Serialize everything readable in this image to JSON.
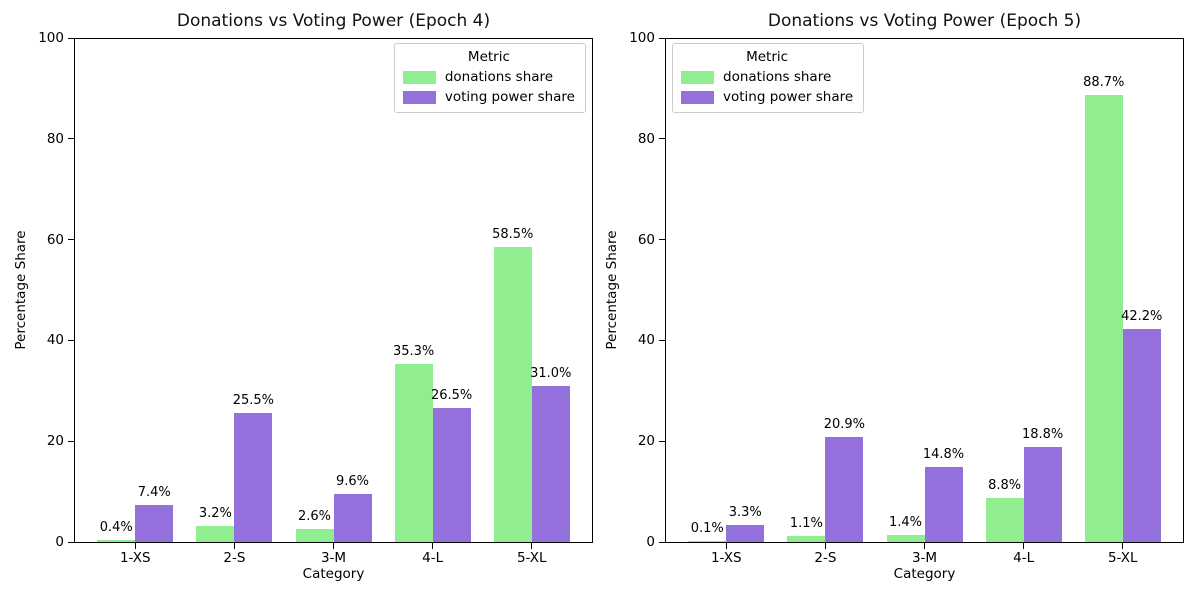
{
  "figure": {
    "background": "#ffffff",
    "spine_color": "#000000",
    "text_color": "#111111"
  },
  "chart_data": [
    {
      "type": "bar",
      "title": "Donations vs Voting Power (Epoch 4)",
      "xlabel": "Category",
      "ylabel": "Percentage Share",
      "categories": [
        "1-XS",
        "2-S",
        "3-M",
        "4-L",
        "5-XL"
      ],
      "series": [
        {
          "name": "donations share",
          "color": "#90EE90",
          "values": [
            0.4,
            3.2,
            2.6,
            35.3,
            58.5
          ]
        },
        {
          "name": "voting power share",
          "color": "#9370DB",
          "values": [
            7.4,
            25.5,
            9.6,
            26.5,
            31.0
          ]
        }
      ],
      "value_labels": [
        [
          "0.4%",
          "3.2%",
          "2.6%",
          "35.3%",
          "58.5%"
        ],
        [
          "7.4%",
          "25.5%",
          "9.6%",
          "26.5%",
          "31.0%"
        ]
      ],
      "ylim": [
        0,
        100
      ],
      "yticks": [
        0,
        20,
        40,
        60,
        80,
        100
      ],
      "grid": "off",
      "legend_title": "Metric",
      "legend_position": "upper-right"
    },
    {
      "type": "bar",
      "title": "Donations vs Voting Power (Epoch 5)",
      "xlabel": "Category",
      "ylabel": "Percentage Share",
      "categories": [
        "1-XS",
        "2-S",
        "3-M",
        "4-L",
        "5-XL"
      ],
      "series": [
        {
          "name": "donations share",
          "color": "#90EE90",
          "values": [
            0.1,
            1.1,
            1.4,
            8.8,
            88.7
          ]
        },
        {
          "name": "voting power share",
          "color": "#9370DB",
          "values": [
            3.3,
            20.9,
            14.8,
            18.8,
            42.2
          ]
        }
      ],
      "value_labels": [
        [
          "0.1%",
          "1.1%",
          "1.4%",
          "8.8%",
          "88.7%"
        ],
        [
          "3.3%",
          "20.9%",
          "14.8%",
          "18.8%",
          "42.2%"
        ]
      ],
      "ylim": [
        0,
        100
      ],
      "yticks": [
        0,
        20,
        40,
        60,
        80,
        100
      ],
      "grid": "off",
      "legend_title": "Metric",
      "legend_position": "upper-left"
    }
  ]
}
